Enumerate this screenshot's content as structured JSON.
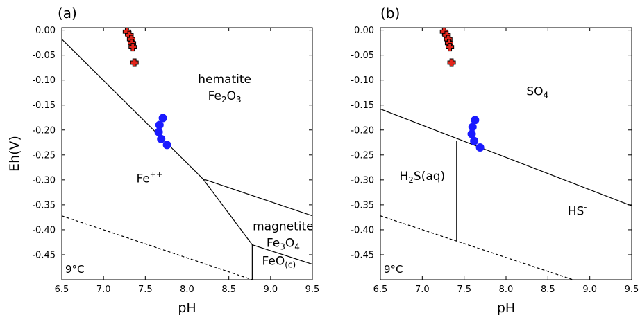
{
  "chart_data": [
    {
      "type": "scatter",
      "panel_label": "(a)",
      "xlabel": "pH",
      "ylabel": "Eh(V)",
      "xlim": [
        6.5,
        9.5
      ],
      "ylim": [
        -0.5,
        0.005
      ],
      "xticks": [
        "6.5",
        "7.0",
        "7.5",
        "8.0",
        "8.5",
        "9.0",
        "9.5"
      ],
      "xtick_values": [
        6.5,
        7.0,
        7.5,
        8.0,
        8.5,
        9.0,
        9.5
      ],
      "yticks": [
        "0.00",
        "-0.05",
        "-0.10",
        "-0.15",
        "-0.20",
        "-0.25",
        "-0.30",
        "-0.35",
        "-0.40",
        "-0.45"
      ],
      "ytick_values": [
        0.0,
        -0.05,
        -0.1,
        -0.15,
        -0.2,
        -0.25,
        -0.3,
        -0.35,
        -0.4,
        -0.45
      ],
      "temperature": "9°C",
      "boundaries": [
        {
          "style": "solid",
          "points": [
            [
              6.5,
              -0.018
            ],
            [
              8.19,
              -0.298
            ]
          ]
        },
        {
          "style": "solid",
          "points": [
            [
              8.19,
              -0.298
            ],
            [
              9.5,
              -0.372
            ]
          ]
        },
        {
          "style": "solid",
          "points": [
            [
              8.19,
              -0.298
            ],
            [
              8.78,
              -0.43
            ]
          ]
        },
        {
          "style": "solid",
          "points": [
            [
              8.78,
              -0.43
            ],
            [
              9.5,
              -0.469
            ]
          ]
        },
        {
          "style": "solid",
          "points": [
            [
              8.78,
              -0.43
            ],
            [
              8.78,
              -0.5
            ]
          ]
        },
        {
          "style": "dashed",
          "points": [
            [
              6.5,
              -0.372
            ],
            [
              8.78,
              -0.5
            ]
          ]
        }
      ],
      "regions": [
        {
          "label": [
            "hematite",
            "Fe",
            "2",
            "O",
            "3"
          ],
          "x": 8.45,
          "y": -0.12
        },
        {
          "label": [
            "Fe",
            "++"
          ],
          "x": 7.55,
          "y": -0.305
        },
        {
          "label": [
            "magnetite",
            "Fe",
            "3",
            "O",
            "4"
          ],
          "x": 9.15,
          "y": -0.415
        },
        {
          "label": [
            "FeO",
            "(c)"
          ],
          "x": 9.1,
          "y": -0.47
        }
      ],
      "series": [
        {
          "marker": "cross",
          "color": "#e3261c",
          "x": [
            7.28,
            7.31,
            7.33,
            7.34,
            7.35,
            7.37
          ],
          "y": [
            -0.003,
            -0.01,
            -0.018,
            -0.026,
            -0.034,
            -0.065
          ]
        },
        {
          "marker": "circle",
          "color": "#1a1aff",
          "x": [
            7.71,
            7.67,
            7.66,
            7.69,
            7.76
          ],
          "y": [
            -0.176,
            -0.19,
            -0.204,
            -0.218,
            -0.23
          ]
        }
      ]
    },
    {
      "type": "scatter",
      "panel_label": "(b)",
      "xlabel": "pH",
      "ylabel": "",
      "xlim": [
        6.5,
        9.5
      ],
      "ylim": [
        -0.5,
        0.005
      ],
      "xticks": [
        "6.5",
        "7.0",
        "7.5",
        "8.0",
        "8.5",
        "9.0",
        "9.5"
      ],
      "xtick_values": [
        6.5,
        7.0,
        7.5,
        8.0,
        8.5,
        9.0,
        9.5
      ],
      "yticks": [
        "0.00",
        "-0.05",
        "-0.10",
        "-0.15",
        "-0.20",
        "-0.25",
        "-0.30",
        "-0.35",
        "-0.40",
        "-0.45"
      ],
      "ytick_values": [
        0.0,
        -0.05,
        -0.1,
        -0.15,
        -0.2,
        -0.25,
        -0.3,
        -0.35,
        -0.4,
        -0.45
      ],
      "temperature": "9°C",
      "boundaries": [
        {
          "style": "solid",
          "points": [
            [
              6.5,
              -0.158
            ],
            [
              9.5,
              -0.352
            ]
          ]
        },
        {
          "style": "solid",
          "points": [
            [
              7.41,
              -0.222
            ],
            [
              7.41,
              -0.423
            ]
          ]
        },
        {
          "style": "dashed",
          "points": [
            [
              6.5,
              -0.372
            ],
            [
              8.8,
              -0.5
            ]
          ]
        }
      ],
      "regions": [
        {
          "label": [
            "SO",
            "4",
            "--"
          ],
          "x": 8.4,
          "y": -0.13
        },
        {
          "label": [
            "H",
            "2",
            "S(aq)"
          ],
          "x": 7.0,
          "y": -0.3
        },
        {
          "label": [
            "HS",
            "-"
          ],
          "x": 8.85,
          "y": -0.37
        }
      ],
      "series": [
        {
          "marker": "cross",
          "color": "#e3261c",
          "x": [
            7.26,
            7.29,
            7.31,
            7.32,
            7.33,
            7.35
          ],
          "y": [
            -0.003,
            -0.01,
            -0.018,
            -0.026,
            -0.034,
            -0.065
          ]
        },
        {
          "marker": "circle",
          "color": "#1a1aff",
          "x": [
            7.63,
            7.6,
            7.59,
            7.62,
            7.69
          ],
          "y": [
            -0.18,
            -0.194,
            -0.208,
            -0.222,
            -0.235
          ]
        }
      ]
    }
  ]
}
